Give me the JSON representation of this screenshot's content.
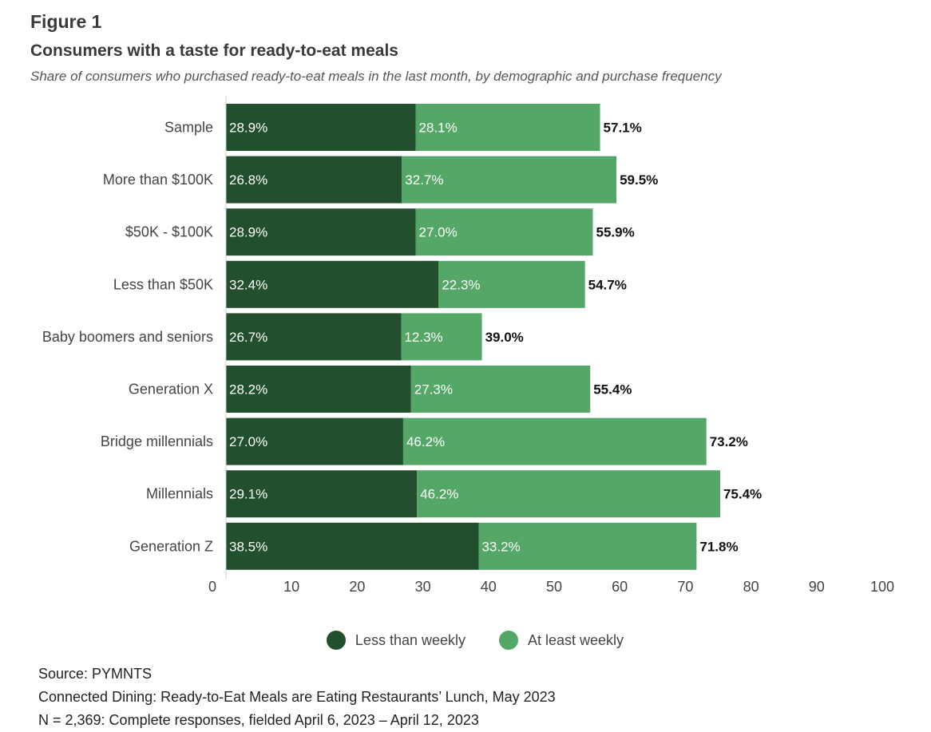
{
  "figure_label": "Figure 1",
  "chart_data": {
    "type": "bar",
    "orientation": "horizontal",
    "stacked": true,
    "title": "Consumers with a taste for ready-to-eat meals",
    "subtitle": "Share of consumers who purchased ready-to-eat meals in the last month, by demographic and purchase frequency",
    "categories": [
      "Sample",
      "More than $100K",
      "$50K - $100K",
      "Less than $50K",
      "Baby boomers and seniors",
      "Generation X",
      "Bridge millennials",
      "Millennials",
      "Generation Z"
    ],
    "series": [
      {
        "name": "Less than weekly",
        "color": "#224f2d",
        "values": [
          28.9,
          26.8,
          28.9,
          32.4,
          26.7,
          28.2,
          27.0,
          29.1,
          38.5
        ]
      },
      {
        "name": "At least weekly",
        "color": "#54a766",
        "values": [
          28.1,
          32.7,
          27.0,
          22.3,
          12.3,
          27.3,
          46.2,
          46.2,
          33.2
        ]
      }
    ],
    "totals": [
      57.1,
      59.5,
      55.9,
      54.7,
      39.0,
      55.4,
      73.2,
      75.4,
      71.8
    ],
    "xlim": [
      0,
      100
    ],
    "xticks": [
      0,
      10,
      20,
      30,
      40,
      50,
      60,
      70,
      80,
      90,
      100
    ],
    "value_suffix": "%",
    "grid": false,
    "legend_position": "bottom"
  },
  "footer": {
    "source": "Source: PYMNTS",
    "report": "Connected Dining: Ready-to-Eat Meals are Eating Restaurants’ Lunch, May 2023",
    "sample": "N = 2,369: Complete responses, fielded April 6, 2023 – April 12, 2023"
  }
}
